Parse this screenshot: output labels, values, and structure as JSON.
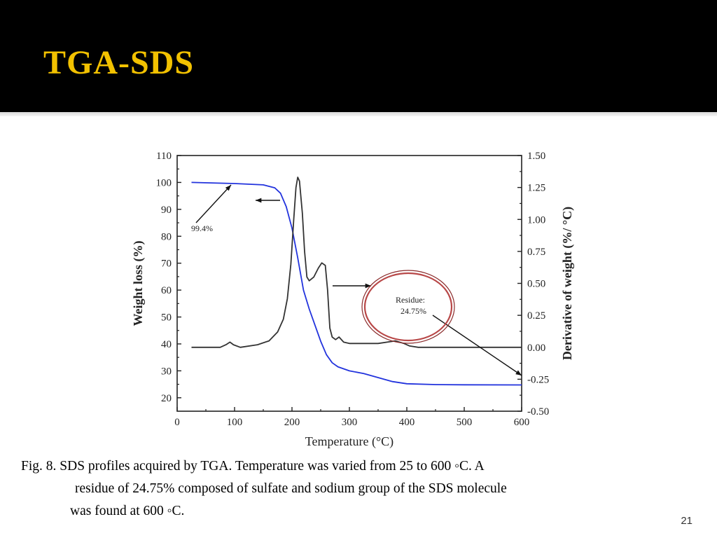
{
  "slide": {
    "title": "TGA-SDS",
    "caption_lines": [
      "Fig. 8. SDS profiles acquired by TGA. Temperature was varied from 25 to 600 ◦C. A",
      "residue of 24.75% composed of sulfate and sodium group of the SDS molecule",
      "was found at 600 ◦C."
    ],
    "slide_number": "21",
    "colors": {
      "header_bg": "#000000",
      "title": "#f2c100"
    }
  },
  "chart_data": {
    "type": "line",
    "xlabel": "Temperature (°C)",
    "ylabel_left": "Weight loss (%)",
    "ylabel_right": "Derivative of weight (%/  °C)",
    "xlim": [
      0,
      600
    ],
    "ylim_left": [
      15,
      110
    ],
    "ylim_right": [
      -0.5,
      1.5
    ],
    "x_ticks": [
      "0",
      "100",
      "200",
      "300",
      "400",
      "500",
      "600"
    ],
    "y_ticks_left": [
      "20",
      "30",
      "40",
      "50",
      "60",
      "70",
      "80",
      "90",
      "100",
      "110"
    ],
    "y_ticks_right": [
      "-0.50",
      "-0.25",
      "0.00",
      "0.25",
      "0.50",
      "0.75",
      "1.00",
      "1.25",
      "1.50"
    ],
    "grid": false,
    "series": [
      {
        "axis": "left",
        "color": "#2233dd",
        "points": [
          [
            25,
            100
          ],
          [
            100,
            99.6
          ],
          [
            150,
            99.1
          ],
          [
            170,
            98
          ],
          [
            180,
            96
          ],
          [
            190,
            91
          ],
          [
            200,
            83
          ],
          [
            210,
            72
          ],
          [
            220,
            60
          ],
          [
            230,
            53
          ],
          [
            240,
            47
          ],
          [
            250,
            41
          ],
          [
            260,
            36
          ],
          [
            270,
            33
          ],
          [
            280,
            31.5
          ],
          [
            300,
            30
          ],
          [
            325,
            29
          ],
          [
            350,
            27.5
          ],
          [
            375,
            26
          ],
          [
            400,
            25.2
          ],
          [
            450,
            24.9
          ],
          [
            500,
            24.8
          ],
          [
            600,
            24.75
          ]
        ]
      },
      {
        "axis": "right",
        "color": "#333333",
        "points": [
          [
            25,
            0.0
          ],
          [
            75,
            0.0
          ],
          [
            85,
            0.02
          ],
          [
            92,
            0.04
          ],
          [
            98,
            0.02
          ],
          [
            110,
            0.0
          ],
          [
            140,
            0.02
          ],
          [
            160,
            0.05
          ],
          [
            175,
            0.12
          ],
          [
            185,
            0.22
          ],
          [
            192,
            0.38
          ],
          [
            198,
            0.65
          ],
          [
            203,
            1.0
          ],
          [
            207,
            1.25
          ],
          [
            210,
            1.33
          ],
          [
            213,
            1.3
          ],
          [
            218,
            1.05
          ],
          [
            222,
            0.75
          ],
          [
            226,
            0.55
          ],
          [
            230,
            0.52
          ],
          [
            238,
            0.55
          ],
          [
            246,
            0.62
          ],
          [
            252,
            0.66
          ],
          [
            258,
            0.64
          ],
          [
            262,
            0.45
          ],
          [
            266,
            0.15
          ],
          [
            270,
            0.08
          ],
          [
            276,
            0.06
          ],
          [
            282,
            0.08
          ],
          [
            290,
            0.04
          ],
          [
            300,
            0.03
          ],
          [
            350,
            0.03
          ],
          [
            380,
            0.05
          ],
          [
            395,
            0.03
          ],
          [
            405,
            0.01
          ],
          [
            420,
            0.0
          ],
          [
            600,
            0.0
          ]
        ]
      }
    ],
    "annotations": [
      {
        "text": "99.4%"
      },
      {
        "text": "Residue:"
      },
      {
        "text": "24.75%"
      }
    ]
  }
}
